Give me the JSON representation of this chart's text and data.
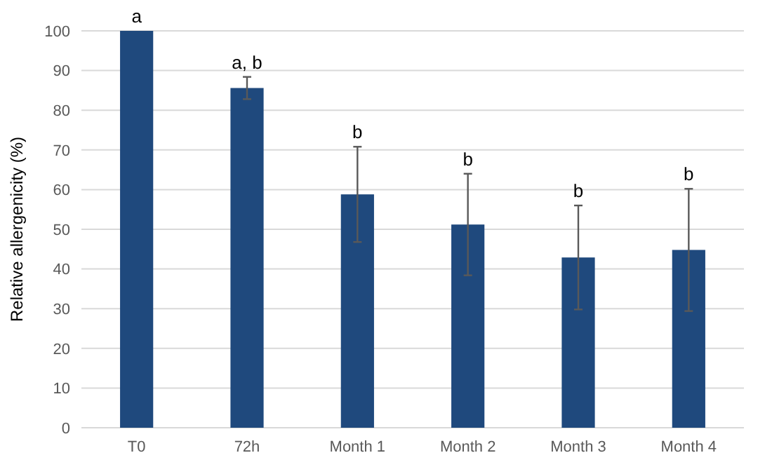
{
  "chart_data": {
    "type": "bar",
    "ylabel": "Relative allergenicity (%)",
    "categories": [
      "T0",
      "72h",
      "Month 1",
      "Month 2",
      "Month 3",
      "Month 4"
    ],
    "values": [
      100,
      85.6,
      58.8,
      51.2,
      42.9,
      44.8
    ],
    "errors": [
      null,
      2.8,
      12,
      12.8,
      13.1,
      15.4
    ],
    "color": "#1f497d",
    "ylim": [
      0,
      100
    ],
    "yticks": [
      0,
      10,
      20,
      30,
      40,
      50,
      60,
      70,
      80,
      90,
      100
    ],
    "grid": "y",
    "annotations": [
      {
        "text": "a",
        "x": "T0",
        "y": 100
      },
      {
        "text": "a, b",
        "x": "72h",
        "y": 88.4
      },
      {
        "text": "b",
        "x": "Month 1",
        "y": 70.8
      },
      {
        "text": "b",
        "x": "Month 2",
        "y": 64
      },
      {
        "text": "b",
        "x": "Month 3",
        "y": 56
      },
      {
        "text": "b",
        "x": "Month 4",
        "y": 60.2
      }
    ]
  }
}
